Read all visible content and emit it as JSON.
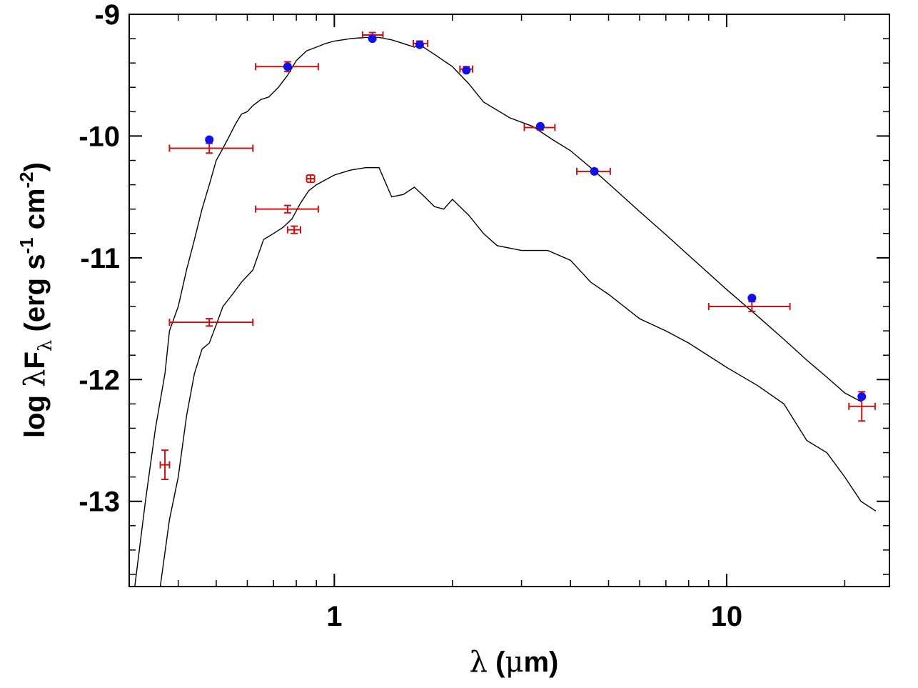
{
  "chart_data": {
    "type": "scatter",
    "title": "",
    "xlabel": "λ (μm)",
    "xlabel_parts": {
      "lambda": "λ",
      "open": " (",
      "mu": "μ",
      "rest": "m)"
    },
    "ylabel": "log λFλ (erg s-1 cm-2)",
    "ylabel_parts": {
      "log": "log ",
      "lambda": "λ",
      "F": "F",
      "sub_lambda": "λ",
      "open": " (erg s",
      "exp1": "-1",
      "cm": " cm",
      "exp2": "-2",
      "close": ")"
    },
    "x_scale": "log",
    "xlim": [
      0.3,
      26
    ],
    "ylim": [
      -13.7,
      -9
    ],
    "xticks": [
      {
        "value": 1,
        "label": "1"
      },
      {
        "value": 10,
        "label": "10"
      }
    ],
    "yticks": [
      {
        "value": -9,
        "label": "-9"
      },
      {
        "value": -10,
        "label": "-10"
      },
      {
        "value": -11,
        "label": "-11"
      },
      {
        "value": -12,
        "label": "-12"
      },
      {
        "value": -13,
        "label": "-13"
      }
    ],
    "grid": false,
    "colors": {
      "model": "#000000",
      "observed": "#cc1111",
      "synthetic": "#1111ee"
    },
    "series": [
      {
        "kind": "model-curve",
        "x": [
          0.31,
          0.33,
          0.35,
          0.37,
          0.38,
          0.4,
          0.42,
          0.44,
          0.46,
          0.48,
          0.5,
          0.52,
          0.54,
          0.56,
          0.58,
          0.6,
          0.62,
          0.65,
          0.68,
          0.72,
          0.76,
          0.8,
          0.85,
          0.9,
          0.95,
          1.0,
          1.1,
          1.2,
          1.3,
          1.4,
          1.5,
          1.6,
          1.65,
          1.8,
          2.0,
          2.2,
          2.4,
          2.8,
          3.2,
          3.6,
          4.0,
          4.5,
          5.0,
          6.0,
          7.0,
          8.0,
          10.0,
          12.0,
          14.0,
          16.0,
          18.0,
          20.0,
          22.0
        ],
        "y": [
          -13.7,
          -13.0,
          -12.4,
          -11.95,
          -11.6,
          -11.4,
          -11.1,
          -10.85,
          -10.6,
          -10.4,
          -10.2,
          -10.1,
          -10.0,
          -9.9,
          -9.82,
          -9.8,
          -9.75,
          -9.7,
          -9.68,
          -9.6,
          -9.5,
          -9.38,
          -9.3,
          -9.27,
          -9.24,
          -9.22,
          -9.2,
          -9.19,
          -9.19,
          -9.21,
          -9.24,
          -9.27,
          -9.25,
          -9.33,
          -9.43,
          -9.57,
          -9.72,
          -9.85,
          -9.92,
          -10.03,
          -10.12,
          -10.26,
          -10.39,
          -10.62,
          -10.81,
          -10.98,
          -11.26,
          -11.48,
          -11.67,
          -11.84,
          -11.98,
          -12.11,
          -12.18
        ]
      },
      {
        "kind": "model-curve",
        "x": [
          0.36,
          0.38,
          0.4,
          0.42,
          0.44,
          0.46,
          0.48,
          0.5,
          0.52,
          0.55,
          0.58,
          0.62,
          0.66,
          0.7,
          0.74,
          0.78,
          0.82,
          0.86,
          0.9,
          1.0,
          1.1,
          1.2,
          1.3,
          1.4,
          1.5,
          1.6,
          1.7,
          1.8,
          1.9,
          2.0,
          2.2,
          2.4,
          2.6,
          3.0,
          3.5,
          4.0,
          4.5,
          5.0,
          6.0,
          7.0,
          8.0,
          10.0,
          12.0,
          14.0,
          16.0,
          18.0,
          20.0,
          22.0,
          24.0
        ],
        "y": [
          -13.7,
          -13.15,
          -12.8,
          -12.3,
          -11.95,
          -11.75,
          -11.7,
          -11.55,
          -11.4,
          -11.3,
          -11.2,
          -11.1,
          -10.85,
          -10.8,
          -10.75,
          -10.68,
          -10.55,
          -10.45,
          -10.4,
          -10.32,
          -10.28,
          -10.26,
          -10.26,
          -10.5,
          -10.48,
          -10.42,
          -10.5,
          -10.58,
          -10.6,
          -10.52,
          -10.65,
          -10.8,
          -10.9,
          -10.94,
          -10.94,
          -11.02,
          -11.2,
          -11.3,
          -11.5,
          -11.6,
          -11.7,
          -11.9,
          -12.05,
          -12.2,
          -12.5,
          -12.6,
          -12.8,
          -13.0,
          -13.08
        ]
      },
      {
        "kind": "observed-with-errors",
        "x": [
          0.37,
          0.48,
          0.48,
          0.76,
          0.76,
          0.79,
          0.87,
          1.25,
          1.65,
          2.17,
          3.35,
          4.6,
          11.6,
          22.1
        ],
        "y": [
          -12.7,
          -10.1,
          -11.53,
          -9.43,
          -10.6,
          -10.77,
          -10.35,
          -9.17,
          -9.24,
          -9.45,
          -9.93,
          -10.29,
          -11.4,
          -12.22
        ],
        "x_err_low": [
          0.01,
          0.1,
          0.1,
          0.13,
          0.13,
          0.03,
          0.02,
          0.07,
          0.06,
          0.08,
          0.3,
          0.45,
          2.6,
          1.6
        ],
        "x_err_high": [
          0.01,
          0.14,
          0.14,
          0.15,
          0.15,
          0.03,
          0.02,
          0.08,
          0.08,
          0.08,
          0.3,
          0.45,
          2.9,
          1.8
        ],
        "y_err": [
          0.12,
          0.04,
          0.03,
          0.04,
          0.03,
          0.03,
          0.03,
          0.02,
          0.02,
          0.02,
          0.02,
          0.02,
          0.04,
          0.12
        ]
      },
      {
        "kind": "synthetic-photometry",
        "x": [
          0.48,
          0.76,
          1.25,
          1.65,
          2.17,
          3.35,
          4.6,
          11.6,
          22.1
        ],
        "y": [
          -10.03,
          -9.43,
          -9.2,
          -9.25,
          -9.46,
          -9.92,
          -10.29,
          -11.33,
          -12.14
        ]
      }
    ]
  }
}
